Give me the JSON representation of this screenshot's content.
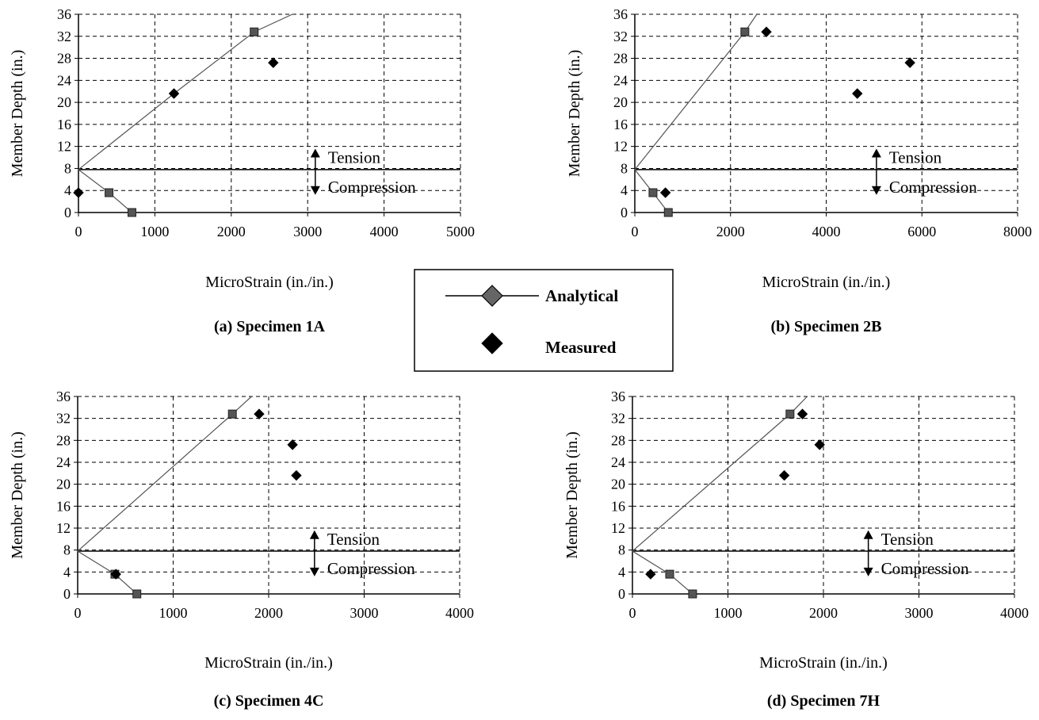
{
  "chart_data": [
    {
      "type": "scatter",
      "caption": "(a) Specimen 1A",
      "xlabel": "MicroStrain (in./in.)",
      "ylabel": "Member Depth (in.)",
      "xlim": [
        0,
        5000
      ],
      "ylim": [
        0,
        36
      ],
      "x_ticks": [
        0,
        1000,
        2000,
        3000,
        4000,
        5000
      ],
      "y_ticks": [
        0,
        4,
        8,
        12,
        16,
        20,
        24,
        28,
        32,
        36
      ],
      "grid": "dashed",
      "neutral_axis_y": 7.8,
      "annotation": {
        "x": 3100,
        "upper_label": "Tension",
        "lower_label": "Compression"
      },
      "series": [
        {
          "name": "Analytical",
          "style": "line-with-square-markers",
          "x": [
            700,
            400,
            0,
            1250,
            2300,
            2800
          ],
          "y": [
            0,
            3.6,
            7.8,
            21.6,
            32.8,
            36
          ],
          "marker_points": [
            [
              700,
              0
            ],
            [
              400,
              3.6
            ],
            [
              2300,
              32.8
            ]
          ]
        },
        {
          "name": "Measured",
          "style": "diamond-markers",
          "x": [
            0,
            1250,
            2550
          ],
          "y": [
            3.6,
            21.6,
            27.2
          ]
        }
      ]
    },
    {
      "type": "scatter",
      "caption": "(b) Specimen 2B",
      "xlabel": "MicroStrain (in./in.)",
      "ylabel": "Member Depth (in.)",
      "xlim": [
        0,
        8000
      ],
      "ylim": [
        0,
        36
      ],
      "x_ticks": [
        0,
        2000,
        4000,
        6000,
        8000
      ],
      "y_ticks": [
        0,
        4,
        8,
        12,
        16,
        20,
        24,
        28,
        32,
        36
      ],
      "grid": "dashed",
      "neutral_axis_y": 7.8,
      "annotation": {
        "x": 5050,
        "upper_label": "Tension",
        "lower_label": "Compression"
      },
      "series": [
        {
          "name": "Analytical",
          "style": "line-with-square-markers",
          "x": [
            700,
            380,
            0,
            2300,
            2550
          ],
          "y": [
            0,
            3.6,
            7.8,
            32.8,
            36
          ],
          "marker_points": [
            [
              700,
              0
            ],
            [
              380,
              3.6
            ],
            [
              2300,
              32.8
            ]
          ]
        },
        {
          "name": "Measured",
          "style": "diamond-markers",
          "x": [
            640,
            2750,
            4650,
            5750
          ],
          "y": [
            3.6,
            32.8,
            21.6,
            27.2
          ]
        }
      ]
    },
    {
      "type": "scatter",
      "caption": "(c) Specimen 4C",
      "xlabel": "MicroStrain (in./in.)",
      "ylabel": "Member Depth (in.)",
      "xlim": [
        0,
        4000
      ],
      "ylim": [
        0,
        36
      ],
      "x_ticks": [
        0,
        1000,
        2000,
        3000,
        4000
      ],
      "y_ticks": [
        0,
        4,
        8,
        12,
        16,
        20,
        24,
        28,
        32,
        36
      ],
      "grid": "dashed",
      "neutral_axis_y": 7.8,
      "annotation": {
        "x": 2480,
        "upper_label": "Tension",
        "lower_label": "Compression"
      },
      "series": [
        {
          "name": "Analytical",
          "style": "line-with-square-markers",
          "x": [
            620,
            390,
            0,
            1620,
            1820
          ],
          "y": [
            0,
            3.6,
            7.8,
            32.8,
            36
          ],
          "marker_points": [
            [
              620,
              0
            ],
            [
              390,
              3.6
            ],
            [
              1620,
              32.8
            ]
          ]
        },
        {
          "name": "Measured",
          "style": "diamond-markers",
          "x": [
            400,
            1900,
            2250,
            2290
          ],
          "y": [
            3.6,
            32.8,
            27.2,
            21.6
          ]
        }
      ]
    },
    {
      "type": "scatter",
      "caption": "(d) Specimen 7H",
      "xlabel": "MicroStrain (in./in.)",
      "ylabel": "Member Depth (in.)",
      "xlim": [
        0,
        4000
      ],
      "ylim": [
        0,
        36
      ],
      "x_ticks": [
        0,
        1000,
        2000,
        3000,
        4000
      ],
      "y_ticks": [
        0,
        4,
        8,
        12,
        16,
        20,
        24,
        28,
        32,
        36
      ],
      "grid": "dashed",
      "neutral_axis_y": 7.8,
      "annotation": {
        "x": 2470,
        "upper_label": "Tension",
        "lower_label": "Compression"
      },
      "series": [
        {
          "name": "Analytical",
          "style": "line-with-square-markers",
          "x": [
            630,
            390,
            0,
            1650,
            1830
          ],
          "y": [
            0,
            3.6,
            7.8,
            32.8,
            36
          ],
          "marker_points": [
            [
              630,
              0
            ],
            [
              390,
              3.6
            ],
            [
              1650,
              32.8
            ]
          ]
        },
        {
          "name": "Measured",
          "style": "diamond-markers",
          "x": [
            190,
            1780,
            1960,
            1590
          ],
          "y": [
            3.6,
            32.8,
            27.2,
            21.6
          ]
        }
      ]
    }
  ],
  "legend": {
    "items": [
      {
        "label": "Analytical",
        "symbol": "line-with-diamond"
      },
      {
        "label": "Measured",
        "symbol": "diamond"
      }
    ]
  }
}
